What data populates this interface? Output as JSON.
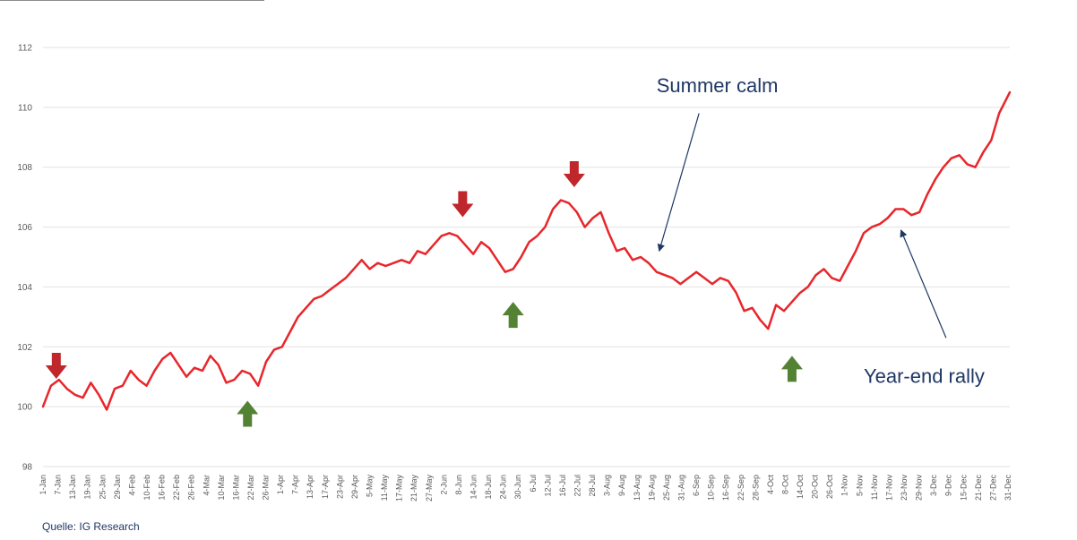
{
  "source_note": "Quelle: IG Research",
  "chart_data": {
    "type": "line",
    "title": "",
    "xlabel": "",
    "ylabel": "",
    "ylim": [
      98,
      112
    ],
    "yticks": [
      98,
      100,
      102,
      104,
      106,
      108,
      110,
      112
    ],
    "grid": true,
    "colors": {
      "line": "#e8262b",
      "grid": "#e2e2e2",
      "down_arrow": "#c0272d",
      "up_arrow": "#548235",
      "annotation": "#1f3864"
    },
    "x_tick_labels": [
      "1-Jan",
      "7-Jan",
      "13-Jan",
      "19-Jan",
      "25-Jan",
      "29-Jan",
      "4-Feb",
      "10-Feb",
      "16-Feb",
      "22-Feb",
      "26-Feb",
      "4-Mar",
      "10-Mar",
      "16-Mar",
      "22-Mar",
      "26-Mar",
      "1-Apr",
      "7-Apr",
      "13-Apr",
      "17-Apr",
      "23-Apr",
      "29-Apr",
      "5-May",
      "11-May",
      "17-May",
      "21-May",
      "27-May",
      "2-Jun",
      "8-Jun",
      "14-Jun",
      "18-Jun",
      "24-Jun",
      "30-Jun",
      "6-Jul",
      "12-Jul",
      "16-Jul",
      "22-Jul",
      "28-Jul",
      "3-Aug",
      "9-Aug",
      "13-Aug",
      "19-Aug",
      "25-Aug",
      "31-Aug",
      "6-Sep",
      "10-Sep",
      "16-Sep",
      "22-Sep",
      "28-Sep",
      "4-Oct",
      "8-Oct",
      "14-Oct",
      "20-Oct",
      "26-Oct",
      "1-Nov",
      "5-Nov",
      "11-Nov",
      "17-Nov",
      "23-Nov",
      "29-Nov",
      "3-Dec",
      "9-Dec",
      "15-Dec",
      "21-Dec",
      "27-Dec",
      "31-Dec"
    ],
    "series": [
      {
        "day_of_year": [
          1,
          4,
          7,
          10,
          13,
          16,
          19,
          22,
          25,
          28,
          31,
          34,
          37,
          40,
          43,
          46,
          49,
          52,
          55,
          58,
          61,
          64,
          67,
          70,
          73,
          76,
          79,
          82,
          85,
          88,
          91,
          94,
          97,
          100,
          103,
          106,
          109,
          112,
          115,
          118,
          121,
          124,
          127,
          130,
          133,
          136,
          139,
          142,
          145,
          148,
          151,
          154,
          157,
          160,
          163,
          166,
          169,
          172,
          175,
          178,
          181,
          184,
          187,
          190,
          193,
          196,
          199,
          202,
          205,
          208,
          211,
          214,
          217,
          220,
          223,
          226,
          229,
          232,
          235,
          238,
          241,
          244,
          247,
          250,
          253,
          256,
          259,
          262,
          265,
          268,
          271,
          274,
          277,
          280,
          283,
          286,
          289,
          292,
          295,
          298,
          301,
          304,
          307,
          310,
          313,
          316,
          319,
          322,
          325,
          328,
          331,
          334,
          337,
          340,
          343,
          346,
          349,
          352,
          355,
          358,
          361,
          365
        ],
        "values": [
          100.0,
          100.7,
          100.9,
          100.6,
          100.4,
          100.3,
          100.8,
          100.4,
          99.9,
          100.6,
          100.7,
          101.2,
          100.9,
          100.7,
          101.2,
          101.6,
          101.8,
          101.4,
          101.0,
          101.3,
          101.2,
          101.7,
          101.4,
          100.8,
          100.9,
          101.2,
          101.1,
          100.7,
          101.5,
          101.9,
          102.0,
          102.5,
          103.0,
          103.3,
          103.6,
          103.7,
          103.9,
          104.1,
          104.3,
          104.6,
          104.9,
          104.6,
          104.8,
          104.7,
          104.8,
          104.9,
          104.8,
          105.2,
          105.1,
          105.4,
          105.7,
          105.8,
          105.7,
          105.4,
          105.1,
          105.5,
          105.3,
          104.9,
          104.5,
          104.6,
          105.0,
          105.5,
          105.7,
          106.0,
          106.6,
          106.9,
          106.8,
          106.5,
          106.0,
          106.3,
          106.5,
          105.8,
          105.2,
          105.3,
          104.9,
          105.0,
          104.8,
          104.5,
          104.4,
          104.3,
          104.1,
          104.3,
          104.5,
          104.3,
          104.1,
          104.3,
          104.2,
          103.8,
          103.2,
          103.3,
          102.9,
          102.6,
          103.4,
          103.2,
          103.5,
          103.8,
          104.0,
          104.4,
          104.6,
          104.3,
          104.2,
          104.7,
          105.2,
          105.8,
          106.0,
          106.1,
          106.3,
          106.6,
          106.6,
          106.4,
          106.5,
          107.1,
          107.6,
          108.0,
          108.3,
          108.4,
          108.1,
          108.0,
          108.5,
          108.9,
          109.8,
          110.5
        ]
      }
    ],
    "markers": [
      {
        "type": "down",
        "day_of_year": 6,
        "y": 101.8
      },
      {
        "type": "up",
        "day_of_year": 78,
        "y": 100.2
      },
      {
        "type": "down",
        "day_of_year": 159,
        "y": 107.2
      },
      {
        "type": "up",
        "day_of_year": 178,
        "y": 103.5
      },
      {
        "type": "down",
        "day_of_year": 201,
        "y": 108.2
      },
      {
        "type": "up",
        "day_of_year": 283,
        "y": 101.7
      }
    ],
    "annotations": [
      {
        "text": "Summer calm",
        "label_day": 232,
        "label_y": 110.5,
        "from_day": 248,
        "from_y": 109.8,
        "to_day": 233,
        "to_y": 105.2
      },
      {
        "text": "Year-end rally",
        "label_day": 310,
        "label_y": 100.8,
        "from_day": 341,
        "from_y": 102.3,
        "to_day": 324,
        "to_y": 105.9
      }
    ]
  }
}
